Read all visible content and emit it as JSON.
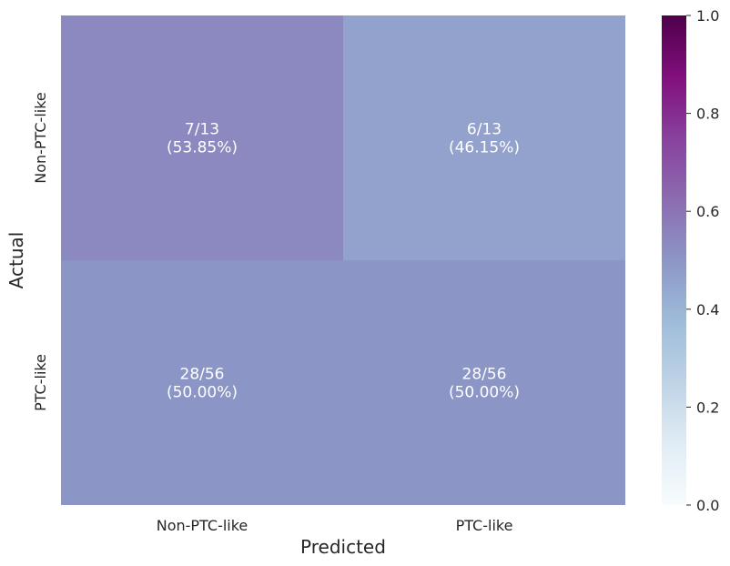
{
  "chart_data": {
    "type": "heatmap",
    "title": "",
    "xlabel": "Predicted",
    "ylabel": "Actual",
    "x_categories": [
      "Non-PTC-like",
      "PTC-like"
    ],
    "y_categories": [
      "Non-PTC-like",
      "PTC-like"
    ],
    "values": [
      [
        0.5385,
        0.4615
      ],
      [
        0.5,
        0.5
      ]
    ],
    "annotations": [
      [
        "7/13\n(53.85%)",
        "6/13\n(46.15%)"
      ],
      [
        "28/56\n(50.00%)",
        "28/56\n(50.00%)"
      ]
    ],
    "colorbar": {
      "min": 0.0,
      "max": 1.0,
      "ticks": [
        "0.0",
        "0.2",
        "0.4",
        "0.6",
        "0.8",
        "1.0"
      ],
      "colormap": "BuPu",
      "colors": [
        "#f7fcfd",
        "#e0ecf4",
        "#bfd3e6",
        "#9ebcda",
        "#8c96c6",
        "#8c6bb1",
        "#88419d",
        "#810f7c",
        "#4d004b"
      ]
    },
    "grid": false
  }
}
